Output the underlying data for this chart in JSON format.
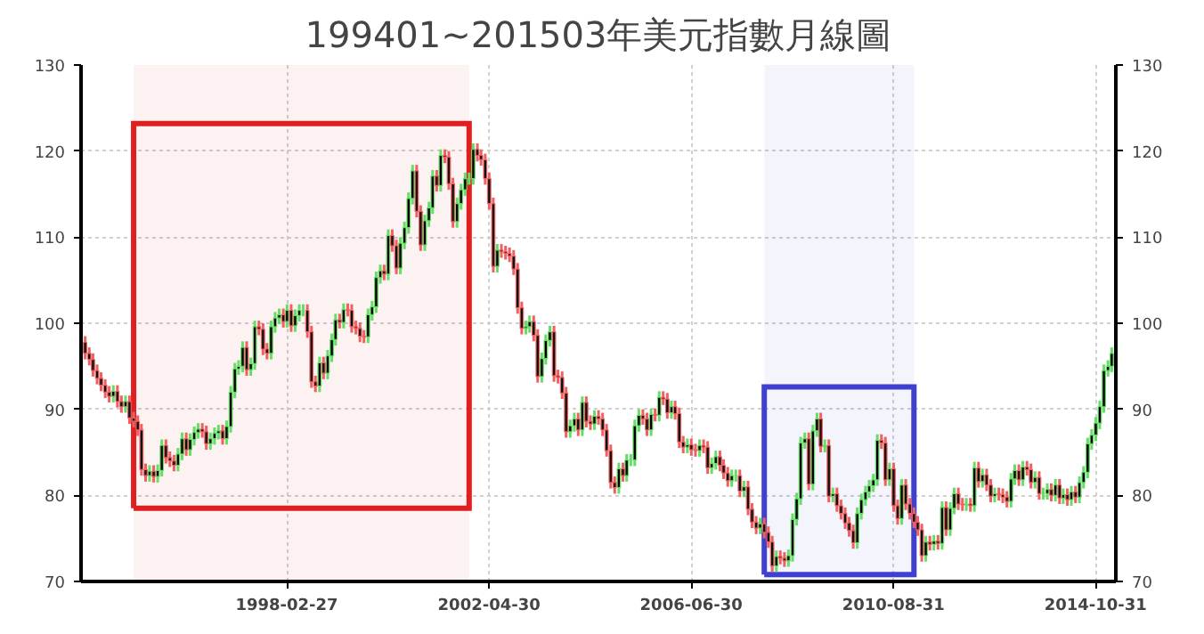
{
  "chart_data": {
    "type": "candlestick",
    "title": "199401~201503年美元指數月線圖",
    "x": [
      "1994-01",
      "1994-02",
      "1994-03",
      "1994-04",
      "1994-05",
      "1994-06",
      "1994-07",
      "1994-08",
      "1994-09",
      "1994-10",
      "1994-11",
      "1994-12",
      "1995-01",
      "1995-02",
      "1995-03",
      "1995-04",
      "1995-05",
      "1995-06",
      "1995-07",
      "1995-08",
      "1995-09",
      "1995-10",
      "1995-11",
      "1995-12",
      "1996-01",
      "1996-02",
      "1996-03",
      "1996-04",
      "1996-05",
      "1996-06",
      "1996-07",
      "1996-08",
      "1996-09",
      "1996-10",
      "1996-11",
      "1996-12",
      "1997-01",
      "1997-02",
      "1997-03",
      "1997-04",
      "1997-05",
      "1997-06",
      "1997-07",
      "1997-08",
      "1997-09",
      "1997-10",
      "1997-11",
      "1997-12",
      "1998-01",
      "1998-02",
      "1998-03",
      "1998-04",
      "1998-05",
      "1998-06",
      "1998-07",
      "1998-08",
      "1998-09",
      "1998-10",
      "1998-11",
      "1998-12",
      "1999-01",
      "1999-02",
      "1999-03",
      "1999-04",
      "1999-05",
      "1999-06",
      "1999-07",
      "1999-08",
      "1999-09",
      "1999-10",
      "1999-11",
      "1999-12",
      "2000-01",
      "2000-02",
      "2000-03",
      "2000-04",
      "2000-05",
      "2000-06",
      "2000-07",
      "2000-08",
      "2000-09",
      "2000-10",
      "2000-11",
      "2000-12",
      "2001-01",
      "2001-02",
      "2001-03",
      "2001-04",
      "2001-05",
      "2001-06",
      "2001-07",
      "2001-08",
      "2001-09",
      "2001-10",
      "2001-11",
      "2001-12",
      "2002-01",
      "2002-02",
      "2002-03",
      "2002-04",
      "2002-05",
      "2002-06",
      "2002-07",
      "2002-08",
      "2002-09",
      "2002-10",
      "2002-11",
      "2002-12",
      "2003-01",
      "2003-02",
      "2003-03",
      "2003-04",
      "2003-05",
      "2003-06",
      "2003-07",
      "2003-08",
      "2003-09",
      "2003-10",
      "2003-11",
      "2003-12",
      "2004-01",
      "2004-02",
      "2004-03",
      "2004-04",
      "2004-05",
      "2004-06",
      "2004-07",
      "2004-08",
      "2004-09",
      "2004-10",
      "2004-11",
      "2004-12",
      "2005-01",
      "2005-02",
      "2005-03",
      "2005-04",
      "2005-05",
      "2005-06",
      "2005-07",
      "2005-08",
      "2005-09",
      "2005-10",
      "2005-11",
      "2005-12",
      "2006-01",
      "2006-02",
      "2006-03",
      "2006-04",
      "2006-05",
      "2006-06",
      "2006-07",
      "2006-08",
      "2006-09",
      "2006-10",
      "2006-11",
      "2006-12",
      "2007-01",
      "2007-02",
      "2007-03",
      "2007-04",
      "2007-05",
      "2007-06",
      "2007-07",
      "2007-08",
      "2007-09",
      "2007-10",
      "2007-11",
      "2007-12",
      "2008-01",
      "2008-02",
      "2008-03",
      "2008-04",
      "2008-05",
      "2008-06",
      "2008-07",
      "2008-08",
      "2008-09",
      "2008-10",
      "2008-11",
      "2008-12",
      "2009-01",
      "2009-02",
      "2009-03",
      "2009-04",
      "2009-05",
      "2009-06",
      "2009-07",
      "2009-08",
      "2009-09",
      "2009-10",
      "2009-11",
      "2009-12",
      "2010-01",
      "2010-02",
      "2010-03",
      "2010-04",
      "2010-05",
      "2010-06",
      "2010-07",
      "2010-08",
      "2010-09",
      "2010-10",
      "2010-11",
      "2010-12",
      "2011-01",
      "2011-02",
      "2011-03",
      "2011-04",
      "2011-05",
      "2011-06",
      "2011-07",
      "2011-08",
      "2011-09",
      "2011-10",
      "2011-11",
      "2011-12",
      "2012-01",
      "2012-02",
      "2012-03",
      "2012-04",
      "2012-05",
      "2012-06",
      "2012-07",
      "2012-08",
      "2012-09",
      "2012-10",
      "2012-11",
      "2012-12",
      "2013-01",
      "2013-02",
      "2013-03",
      "2013-04",
      "2013-05",
      "2013-06",
      "2013-07",
      "2013-08",
      "2013-09",
      "2013-10",
      "2013-11",
      "2013-12",
      "2014-01",
      "2014-02",
      "2014-03",
      "2014-04",
      "2014-05",
      "2014-06",
      "2014-07",
      "2014-08",
      "2014-09",
      "2014-10",
      "2014-11",
      "2014-12",
      "2015-01",
      "2015-02",
      "2015-03"
    ],
    "ohlc": [
      [
        97.8,
        98.5,
        95.8,
        96.5
      ],
      [
        96.5,
        97.2,
        95.1,
        95.8
      ],
      [
        95.8,
        96.5,
        93.8,
        94.5
      ],
      [
        94.5,
        95.2,
        92.9,
        93.6
      ],
      [
        93.6,
        94.3,
        92.1,
        92.8
      ],
      [
        92.8,
        93.5,
        91.3,
        92.0
      ],
      [
        92.0,
        92.7,
        90.8,
        91.5
      ],
      [
        91.5,
        92.8,
        90.8,
        92.1
      ],
      [
        92.1,
        92.8,
        90.2,
        90.9
      ],
      [
        90.9,
        91.6,
        89.6,
        90.3
      ],
      [
        90.3,
        91.6,
        89.6,
        90.9
      ],
      [
        90.9,
        91.6,
        88.3,
        89.0
      ],
      [
        89.0,
        89.7,
        87.9,
        88.6
      ],
      [
        88.6,
        89.3,
        86.9,
        87.6
      ],
      [
        87.6,
        88.3,
        82.3,
        83.0
      ],
      [
        83.0,
        83.7,
        81.6,
        82.3
      ],
      [
        82.3,
        83.5,
        81.6,
        82.8
      ],
      [
        82.8,
        83.5,
        81.5,
        82.2
      ],
      [
        82.2,
        83.6,
        81.5,
        82.9
      ],
      [
        82.9,
        86.5,
        82.2,
        85.8
      ],
      [
        85.8,
        86.5,
        83.7,
        84.4
      ],
      [
        84.4,
        85.1,
        83.3,
        84.0
      ],
      [
        84.0,
        84.7,
        82.8,
        83.5
      ],
      [
        83.5,
        85.5,
        82.8,
        84.8
      ],
      [
        84.8,
        87.3,
        84.1,
        86.6
      ],
      [
        86.6,
        87.3,
        84.6,
        85.3
      ],
      [
        85.3,
        87.2,
        84.6,
        86.5
      ],
      [
        86.5,
        88.0,
        85.8,
        87.3
      ],
      [
        87.3,
        88.4,
        86.6,
        87.7
      ],
      [
        87.7,
        88.4,
        86.7,
        87.4
      ],
      [
        87.4,
        88.1,
        85.3,
        86.0
      ],
      [
        86.0,
        87.3,
        85.3,
        86.6
      ],
      [
        86.6,
        87.9,
        85.9,
        87.2
      ],
      [
        87.2,
        88.2,
        86.5,
        87.5
      ],
      [
        87.5,
        88.2,
        85.9,
        86.6
      ],
      [
        86.6,
        88.7,
        85.9,
        88.0
      ],
      [
        88.0,
        92.7,
        87.3,
        92.0
      ],
      [
        92.0,
        95.4,
        91.3,
        94.7
      ],
      [
        94.7,
        95.7,
        94.0,
        95.0
      ],
      [
        95.0,
        97.9,
        94.3,
        97.2
      ],
      [
        97.2,
        97.9,
        93.9,
        94.6
      ],
      [
        94.6,
        96.0,
        93.9,
        95.3
      ],
      [
        95.3,
        100.3,
        94.6,
        99.6
      ],
      [
        99.6,
        100.3,
        98.6,
        99.3
      ],
      [
        99.3,
        100.0,
        96.3,
        97.0
      ],
      [
        97.0,
        97.7,
        95.8,
        96.5
      ],
      [
        96.5,
        100.3,
        95.8,
        99.6
      ],
      [
        99.6,
        101.3,
        98.9,
        100.6
      ],
      [
        100.6,
        101.7,
        99.9,
        101.0
      ],
      [
        101.0,
        101.7,
        99.5,
        100.2
      ],
      [
        100.2,
        102.2,
        99.5,
        101.5
      ],
      [
        101.5,
        102.2,
        99.0,
        99.7
      ],
      [
        99.7,
        101.6,
        99.0,
        100.9
      ],
      [
        100.9,
        102.2,
        100.2,
        101.5
      ],
      [
        101.5,
        102.2,
        100.8,
        101.5
      ],
      [
        101.5,
        102.2,
        98.3,
        99.0
      ],
      [
        99.0,
        99.7,
        92.5,
        93.2
      ],
      [
        93.2,
        93.9,
        92.0,
        92.7
      ],
      [
        92.7,
        96.1,
        92.0,
        95.4
      ],
      [
        95.4,
        96.1,
        93.5,
        94.2
      ],
      [
        94.2,
        96.9,
        93.5,
        96.2
      ],
      [
        96.2,
        98.8,
        95.5,
        98.1
      ],
      [
        98.1,
        101.1,
        97.4,
        100.4
      ],
      [
        100.4,
        101.1,
        99.4,
        100.1
      ],
      [
        100.1,
        102.3,
        99.4,
        101.6
      ],
      [
        101.6,
        102.3,
        100.8,
        101.5
      ],
      [
        101.5,
        102.2,
        98.9,
        99.6
      ],
      [
        99.6,
        100.3,
        98.7,
        99.4
      ],
      [
        99.4,
        100.1,
        97.8,
        98.5
      ],
      [
        98.5,
        99.2,
        97.7,
        98.4
      ],
      [
        98.4,
        101.7,
        97.7,
        101.0
      ],
      [
        101.0,
        102.6,
        100.3,
        101.9
      ],
      [
        101.9,
        106.0,
        101.2,
        105.3
      ],
      [
        105.3,
        106.8,
        104.6,
        106.1
      ],
      [
        106.1,
        106.8,
        105.0,
        105.7
      ],
      [
        105.7,
        110.9,
        105.0,
        110.2
      ],
      [
        110.2,
        110.9,
        108.3,
        109.0
      ],
      [
        109.0,
        109.7,
        105.7,
        106.4
      ],
      [
        106.4,
        110.0,
        105.7,
        109.3
      ],
      [
        109.3,
        111.8,
        108.6,
        111.1
      ],
      [
        111.1,
        115.2,
        110.4,
        114.5
      ],
      [
        114.5,
        118.4,
        113.8,
        117.7
      ],
      [
        117.7,
        118.4,
        112.3,
        113.0
      ],
      [
        113.0,
        113.7,
        108.4,
        109.1
      ],
      [
        109.1,
        112.6,
        108.4,
        111.9
      ],
      [
        111.9,
        114.1,
        111.2,
        113.4
      ],
      [
        113.4,
        117.8,
        112.7,
        117.1
      ],
      [
        117.1,
        117.8,
        115.3,
        116.0
      ],
      [
        116.0,
        120.2,
        115.3,
        119.5
      ],
      [
        119.5,
        120.2,
        118.6,
        119.3
      ],
      [
        119.3,
        120.0,
        115.5,
        116.2
      ],
      [
        116.2,
        116.9,
        111.1,
        111.8
      ],
      [
        111.8,
        114.6,
        111.1,
        113.9
      ],
      [
        113.9,
        116.2,
        113.2,
        115.5
      ],
      [
        115.5,
        117.5,
        114.8,
        116.8
      ],
      [
        116.8,
        117.5,
        116.1,
        116.8
      ],
      [
        116.8,
        120.9,
        116.1,
        120.2
      ],
      [
        120.2,
        120.9,
        118.8,
        119.5
      ],
      [
        119.5,
        120.2,
        118.3,
        119.0
      ],
      [
        119.0,
        119.7,
        116.1,
        116.8
      ],
      [
        116.8,
        117.5,
        113.2,
        113.9
      ],
      [
        113.9,
        114.6,
        105.9,
        106.6
      ],
      [
        106.6,
        109.2,
        105.9,
        108.5
      ],
      [
        108.5,
        109.2,
        107.6,
        108.3
      ],
      [
        108.3,
        109.0,
        107.4,
        108.1
      ],
      [
        108.1,
        108.8,
        107.1,
        107.8
      ],
      [
        107.8,
        108.5,
        105.6,
        106.3
      ],
      [
        106.3,
        107.0,
        101.1,
        101.8
      ],
      [
        101.8,
        102.5,
        98.7,
        99.4
      ],
      [
        99.4,
        100.3,
        98.7,
        99.6
      ],
      [
        99.6,
        100.9,
        98.9,
        100.2
      ],
      [
        100.2,
        100.9,
        97.9,
        98.6
      ],
      [
        98.6,
        99.3,
        93.1,
        93.8
      ],
      [
        93.8,
        96.6,
        93.1,
        95.9
      ],
      [
        95.9,
        98.7,
        95.2,
        98.0
      ],
      [
        98.0,
        99.7,
        97.3,
        99.0
      ],
      [
        99.0,
        99.7,
        93.2,
        93.9
      ],
      [
        93.9,
        94.6,
        93.0,
        93.7
      ],
      [
        93.7,
        94.4,
        91.2,
        91.9
      ],
      [
        91.9,
        92.6,
        86.7,
        87.4
      ],
      [
        87.4,
        88.8,
        86.7,
        88.1
      ],
      [
        88.1,
        89.6,
        87.4,
        88.9
      ],
      [
        88.9,
        89.6,
        86.9,
        87.6
      ],
      [
        87.6,
        91.5,
        86.9,
        90.8
      ],
      [
        90.8,
        91.5,
        87.9,
        88.6
      ],
      [
        88.6,
        89.3,
        87.6,
        88.3
      ],
      [
        88.3,
        89.9,
        87.6,
        89.2
      ],
      [
        89.2,
        89.9,
        88.2,
        88.9
      ],
      [
        88.9,
        89.6,
        86.9,
        87.6
      ],
      [
        87.6,
        88.3,
        84.5,
        85.2
      ],
      [
        85.2,
        85.9,
        80.8,
        81.5
      ],
      [
        81.5,
        82.2,
        80.2,
        80.9
      ],
      [
        80.9,
        83.8,
        80.2,
        83.1
      ],
      [
        83.1,
        83.8,
        81.6,
        82.3
      ],
      [
        82.3,
        84.8,
        81.6,
        84.1
      ],
      [
        84.1,
        84.8,
        83.4,
        84.1
      ],
      [
        84.1,
        88.8,
        83.4,
        88.1
      ],
      [
        88.1,
        90.0,
        87.4,
        89.3
      ],
      [
        89.3,
        90.0,
        88.2,
        88.9
      ],
      [
        88.9,
        89.6,
        86.9,
        87.6
      ],
      [
        87.6,
        90.1,
        86.9,
        89.4
      ],
      [
        89.4,
        90.1,
        88.6,
        89.3
      ],
      [
        89.3,
        92.1,
        88.6,
        91.4
      ],
      [
        91.4,
        92.1,
        90.5,
        91.2
      ],
      [
        91.2,
        91.9,
        88.9,
        89.6
      ],
      [
        89.6,
        91.0,
        88.9,
        90.3
      ],
      [
        90.3,
        91.0,
        88.8,
        89.5
      ],
      [
        89.5,
        90.2,
        85.5,
        86.2
      ],
      [
        86.2,
        86.9,
        84.9,
        85.6
      ],
      [
        85.6,
        86.6,
        84.9,
        85.9
      ],
      [
        85.9,
        86.6,
        84.6,
        85.3
      ],
      [
        85.3,
        86.0,
        84.5,
        85.2
      ],
      [
        85.2,
        86.5,
        84.5,
        85.8
      ],
      [
        85.8,
        86.5,
        84.9,
        85.6
      ],
      [
        85.6,
        86.3,
        82.5,
        83.2
      ],
      [
        83.2,
        84.4,
        82.5,
        83.7
      ],
      [
        83.7,
        85.2,
        83.0,
        84.5
      ],
      [
        84.5,
        85.2,
        82.8,
        83.5
      ],
      [
        83.5,
        84.2,
        81.9,
        82.6
      ],
      [
        82.6,
        83.3,
        81.0,
        81.7
      ],
      [
        81.7,
        83.0,
        81.0,
        82.3
      ],
      [
        82.3,
        83.0,
        81.6,
        82.3
      ],
      [
        82.3,
        83.0,
        79.8,
        80.5
      ],
      [
        80.5,
        81.7,
        79.8,
        81.0
      ],
      [
        81.0,
        81.7,
        77.7,
        78.4
      ],
      [
        78.4,
        79.1,
        76.2,
        76.9
      ],
      [
        76.9,
        77.6,
        75.5,
        76.2
      ],
      [
        76.2,
        77.4,
        75.5,
        76.7
      ],
      [
        76.7,
        77.4,
        75.0,
        75.7
      ],
      [
        75.7,
        76.4,
        73.9,
        74.6
      ],
      [
        74.6,
        75.3,
        71.1,
        71.8
      ],
      [
        71.8,
        73.6,
        71.1,
        72.9
      ],
      [
        72.9,
        73.6,
        72.0,
        72.7
      ],
      [
        72.7,
        73.4,
        71.7,
        72.4
      ],
      [
        72.4,
        73.7,
        71.7,
        73.0
      ],
      [
        73.0,
        77.9,
        72.3,
        77.2
      ],
      [
        77.2,
        80.3,
        76.5,
        79.6
      ],
      [
        79.6,
        86.8,
        78.9,
        86.1
      ],
      [
        86.1,
        87.3,
        85.4,
        86.6
      ],
      [
        86.6,
        87.3,
        80.6,
        81.3
      ],
      [
        81.3,
        88.2,
        80.6,
        87.5
      ],
      [
        87.5,
        89.6,
        86.8,
        88.9
      ],
      [
        88.9,
        89.6,
        85.0,
        85.7
      ],
      [
        85.7,
        86.5,
        85.0,
        85.8
      ],
      [
        85.8,
        86.5,
        79.2,
        79.9
      ],
      [
        79.9,
        80.9,
        79.2,
        80.2
      ],
      [
        80.2,
        80.9,
        78.1,
        78.8
      ],
      [
        78.8,
        79.5,
        77.2,
        77.9
      ],
      [
        77.9,
        78.6,
        76.1,
        76.8
      ],
      [
        76.8,
        77.5,
        75.2,
        75.9
      ],
      [
        75.9,
        76.6,
        73.8,
        74.5
      ],
      [
        74.5,
        78.6,
        73.8,
        77.9
      ],
      [
        77.9,
        80.2,
        77.2,
        79.5
      ],
      [
        79.5,
        81.1,
        78.8,
        80.4
      ],
      [
        80.4,
        81.8,
        79.7,
        81.1
      ],
      [
        81.1,
        82.5,
        80.4,
        81.8
      ],
      [
        81.8,
        87.1,
        81.1,
        86.4
      ],
      [
        86.4,
        87.1,
        85.4,
        86.1
      ],
      [
        86.1,
        86.8,
        81.1,
        81.8
      ],
      [
        81.8,
        83.8,
        81.1,
        83.1
      ],
      [
        83.1,
        83.8,
        78.1,
        78.8
      ],
      [
        78.8,
        79.5,
        76.6,
        77.3
      ],
      [
        77.3,
        81.9,
        76.6,
        81.2
      ],
      [
        81.2,
        81.9,
        78.3,
        79.0
      ],
      [
        79.0,
        79.7,
        77.2,
        77.9
      ],
      [
        77.9,
        78.6,
        76.2,
        76.9
      ],
      [
        76.9,
        77.6,
        75.3,
        76.0
      ],
      [
        76.0,
        76.7,
        72.3,
        73.0
      ],
      [
        73.0,
        75.3,
        72.3,
        74.6
      ],
      [
        74.6,
        75.3,
        73.6,
        74.3
      ],
      [
        74.3,
        75.4,
        73.6,
        74.7
      ],
      [
        74.7,
        75.4,
        73.7,
        74.4
      ],
      [
        74.4,
        79.3,
        73.7,
        78.6
      ],
      [
        78.6,
        79.3,
        75.3,
        76.0
      ],
      [
        76.0,
        79.2,
        75.3,
        78.5
      ],
      [
        78.5,
        80.9,
        77.8,
        80.2
      ],
      [
        80.2,
        80.9,
        78.3,
        79.0
      ],
      [
        79.0,
        79.7,
        78.2,
        78.9
      ],
      [
        78.9,
        79.7,
        78.2,
        79.0
      ],
      [
        79.0,
        79.7,
        78.1,
        78.8
      ],
      [
        78.8,
        83.9,
        78.1,
        83.2
      ],
      [
        83.2,
        83.9,
        80.9,
        81.6
      ],
      [
        81.6,
        83.1,
        80.9,
        82.4
      ],
      [
        82.4,
        83.1,
        80.5,
        81.2
      ],
      [
        81.2,
        81.9,
        79.2,
        79.9
      ],
      [
        79.9,
        80.9,
        79.2,
        80.2
      ],
      [
        80.2,
        80.9,
        79.4,
        80.1
      ],
      [
        80.1,
        80.8,
        79.1,
        79.8
      ],
      [
        79.8,
        80.5,
        78.6,
        79.3
      ],
      [
        79.3,
        82.6,
        78.6,
        81.9
      ],
      [
        81.9,
        83.6,
        81.2,
        82.9
      ],
      [
        82.9,
        83.6,
        81.1,
        81.8
      ],
      [
        81.8,
        84.0,
        81.1,
        83.3
      ],
      [
        83.3,
        84.0,
        82.3,
        83.0
      ],
      [
        83.0,
        83.7,
        80.8,
        81.5
      ],
      [
        81.5,
        82.8,
        80.8,
        82.1
      ],
      [
        82.1,
        82.8,
        79.5,
        80.2
      ],
      [
        80.2,
        80.9,
        79.5,
        80.2
      ],
      [
        80.2,
        81.4,
        79.5,
        80.7
      ],
      [
        80.7,
        81.4,
        79.3,
        80.0
      ],
      [
        80.0,
        81.9,
        79.3,
        81.2
      ],
      [
        81.2,
        81.9,
        79.0,
        79.7
      ],
      [
        79.7,
        80.8,
        79.0,
        80.1
      ],
      [
        80.1,
        80.8,
        78.8,
        79.5
      ],
      [
        79.5,
        81.1,
        78.8,
        80.4
      ],
      [
        80.4,
        81.1,
        79.1,
        79.8
      ],
      [
        79.8,
        82.2,
        79.1,
        81.5
      ],
      [
        81.5,
        83.4,
        80.8,
        82.7
      ],
      [
        82.7,
        86.7,
        82.0,
        86.0
      ],
      [
        86.0,
        87.7,
        85.3,
        87.0
      ],
      [
        87.0,
        89.1,
        86.3,
        88.4
      ],
      [
        88.4,
        91.0,
        87.7,
        90.3
      ],
      [
        90.3,
        95.2,
        89.6,
        94.5
      ],
      [
        94.5,
        95.7,
        93.8,
        95.0
      ],
      [
        95.0,
        97.2,
        94.3,
        96.5
      ]
    ],
    "xlim": [
      "1993-12",
      "2015-04"
    ],
    "xticks": [
      "1998-02-27",
      "2002-04-30",
      "2006-06-30",
      "2010-08-31",
      "2014-10-31"
    ],
    "ylim": [
      70,
      130
    ],
    "yticks": [
      70,
      80,
      90,
      100,
      110,
      120,
      130
    ],
    "y2lim": [
      70,
      130
    ],
    "y2ticks": [
      70,
      80,
      90,
      100,
      110,
      120,
      130
    ],
    "grid": true,
    "bands": [
      {
        "axis": "x",
        "from": "1995-01",
        "to": "2001-12",
        "color": "#e02020"
      },
      {
        "axis": "x",
        "from": "2008-01",
        "to": "2011-02",
        "color": "#4040d0"
      }
    ]
  }
}
